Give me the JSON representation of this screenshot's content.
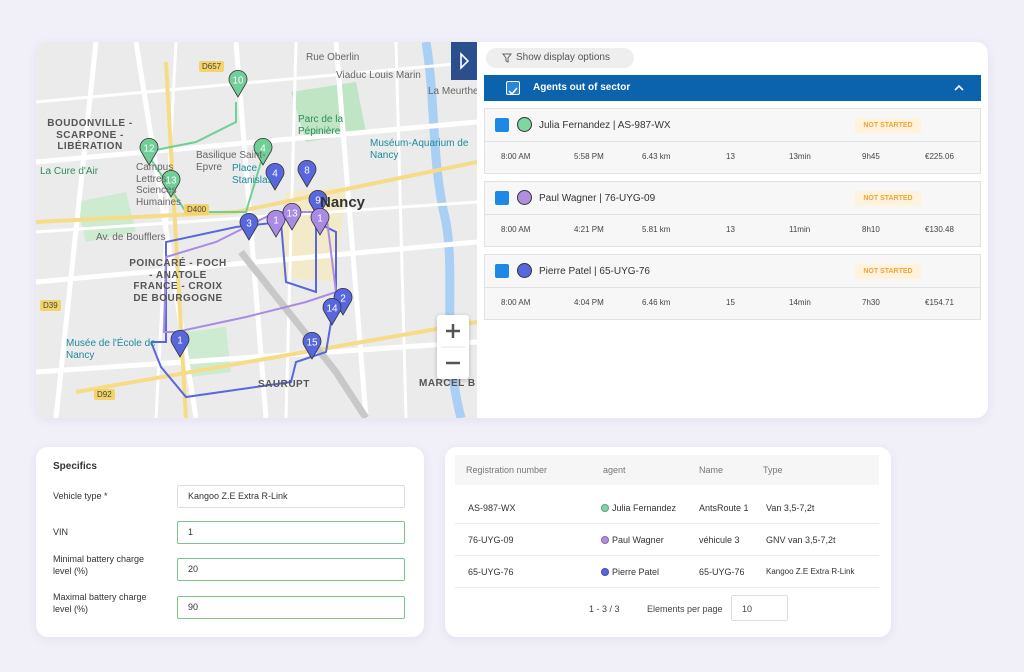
{
  "map": {
    "labels": [
      "BOUDONVILLE - SCARPONE - LIBÉRATION",
      "Parc de la Pépinière",
      "Muséum-Aquarium de Nancy",
      "La Cure d'Air",
      "Campus Lettres Sciences Humaines",
      "Basilique Saint-Epvre",
      "Place Stanislas",
      "Nancy",
      "Av. de Boufflers",
      "POINCARÉ - FOCH - ANATOLE FRANCE - CROIX DE BOURGOGNE",
      "Musée de l'École de Nancy",
      "SAURUPT",
      "MARCEL B",
      "D657",
      "D400",
      "D39",
      "D92",
      "Rue Oberlin",
      "Viaduc Louis Marin",
      "La Meurthe"
    ],
    "markers": [
      {
        "label": "10",
        "color": "#6fcf97"
      },
      {
        "label": "12",
        "color": "#6fcf97"
      },
      {
        "label": "13",
        "color": "#6fcf97"
      },
      {
        "label": "4",
        "color": "#6fcf97"
      },
      {
        "label": "4",
        "color": "#5867dd"
      },
      {
        "label": "8",
        "color": "#5867dd"
      },
      {
        "label": "3",
        "color": "#5867dd"
      },
      {
        "label": "1",
        "color": "#a98be6"
      },
      {
        "label": "13",
        "color": "#a98be6"
      },
      {
        "label": "9",
        "color": "#5867dd"
      },
      {
        "label": "1",
        "color": "#a98be6"
      },
      {
        "label": "2",
        "color": "#5867dd"
      },
      {
        "label": "14",
        "color": "#5867dd"
      },
      {
        "label": "15",
        "color": "#5867dd"
      },
      {
        "label": "1",
        "color": "#5867dd"
      }
    ]
  },
  "panel": {
    "display_options": "Show display options",
    "group_title": "Agents out of sector",
    "agents": [
      {
        "name": "Julia Fernandez | AS-987-WX",
        "color": "#7fd6a2",
        "status": "NOT STARTED",
        "start": "8:00 AM",
        "end": "5:58 PM",
        "distance": "6.43 km",
        "stops": "13",
        "drive": "13min",
        "duration": "9h45",
        "cost": "€225.06"
      },
      {
        "name": "Paul Wagner | 76-UYG-09",
        "color": "#b08fe0",
        "status": "NOT STARTED",
        "start": "8:00 AM",
        "end": "4:21 PM",
        "distance": "5.81 km",
        "stops": "13",
        "drive": "11min",
        "duration": "8h10",
        "cost": "€130.48"
      },
      {
        "name": "Pierre Patel | 65-UYG-76",
        "color": "#5867dd",
        "status": "NOT STARTED",
        "start": "8:00 AM",
        "end": "4:04 PM",
        "distance": "6.46 km",
        "stops": "15",
        "drive": "14min",
        "duration": "7h30",
        "cost": "€154.71"
      }
    ]
  },
  "specifics": {
    "title": "Specifics",
    "fields": [
      {
        "label": "Vehicle type *",
        "value": "Kangoo Z.E Extra R-Link"
      },
      {
        "label": "VIN",
        "value": "1"
      },
      {
        "label": "Minimal battery charge level (%)",
        "value": "20"
      },
      {
        "label": "Maximal battery charge level (%)",
        "value": "90"
      }
    ]
  },
  "table": {
    "headers": [
      "Registration number",
      "agent",
      "Name",
      "Type"
    ],
    "rows": [
      {
        "registration": "AS-987-WX",
        "agent": "Julia Fernandez",
        "agent_color": "#7fd6a2",
        "name": "AntsRoute 1",
        "type": "Van 3,5-7,2t"
      },
      {
        "registration": "76-UYG-09",
        "agent": "Paul Wagner",
        "agent_color": "#b08fe0",
        "name": "véhicule 3",
        "type": "GNV van 3,5-7,2t"
      },
      {
        "registration": "65-UYG-76",
        "agent": "Pierre Patel",
        "agent_color": "#5867dd",
        "name": "65-UYG-76",
        "type": "Kangoo Z.E Extra R-Link"
      }
    ],
    "range": "1 - 3 / 3",
    "per_page_label": "Elements per page",
    "per_page": "10"
  }
}
